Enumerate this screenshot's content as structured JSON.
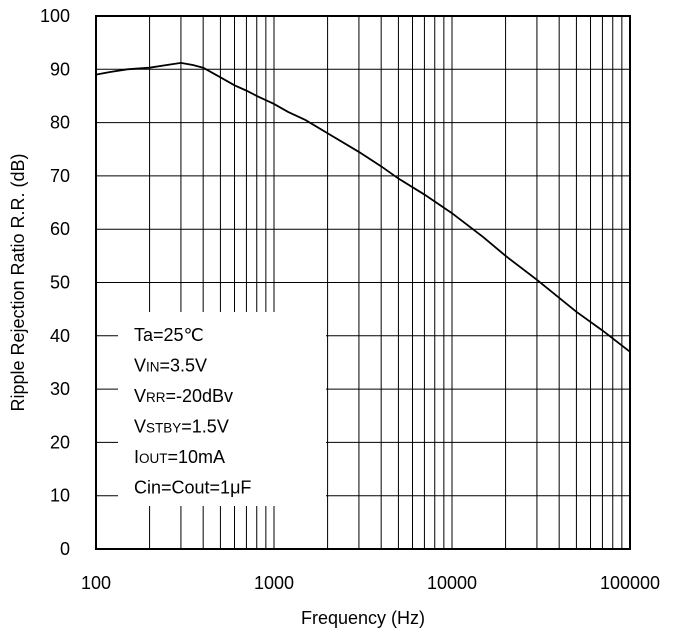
{
  "chart_data": {
    "type": "line",
    "xlabel": "Frequency (Hz)",
    "ylabel": "Ripple Rejection Ratio R.R. (dB)",
    "xscale": "log",
    "xlim": [
      100,
      100000
    ],
    "ylim": [
      0,
      100
    ],
    "x_ticks": [
      "100",
      "1000",
      "10000",
      "100000"
    ],
    "y_ticks": [
      "0",
      "10",
      "20",
      "30",
      "40",
      "50",
      "60",
      "70",
      "80",
      "90",
      "100"
    ],
    "grid": true,
    "series": [
      {
        "x": [
          100,
          120,
          150,
          200,
          250,
          300,
          350,
          400,
          500,
          600,
          700,
          800,
          1000,
          1200,
          1500,
          2000,
          3000,
          4000,
          5000,
          7000,
          10000,
          15000,
          20000,
          30000,
          50000,
          70000,
          100000
        ],
        "y": [
          89,
          89.5,
          90,
          90.3,
          90.8,
          91.2,
          90.8,
          90.3,
          88.5,
          87,
          86,
          85,
          83.5,
          82,
          80.5,
          78,
          74.5,
          71.8,
          69.5,
          66.5,
          63,
          58.5,
          55,
          50.5,
          44.5,
          41,
          37
        ]
      }
    ],
    "annotations": [
      {
        "parts": [
          {
            "t": "Ta=25℃",
            "sub": false
          }
        ]
      },
      {
        "parts": [
          {
            "t": "V",
            "sub": false
          },
          {
            "t": "IN",
            "sub": true
          },
          {
            "t": "=3.5V",
            "sub": false
          }
        ]
      },
      {
        "parts": [
          {
            "t": "V",
            "sub": false
          },
          {
            "t": "RR",
            "sub": true
          },
          {
            "t": "=-20dBv",
            "sub": false
          }
        ]
      },
      {
        "parts": [
          {
            "t": "V",
            "sub": false
          },
          {
            "t": "STBY",
            "sub": true
          },
          {
            "t": "=1.5V",
            "sub": false
          }
        ]
      },
      {
        "parts": [
          {
            "t": "I",
            "sub": false
          },
          {
            "t": "OUT",
            "sub": true
          },
          {
            "t": "=10mA",
            "sub": false
          }
        ]
      },
      {
        "parts": [
          {
            "t": "Cin=Cout=1μF",
            "sub": false
          }
        ]
      }
    ]
  }
}
